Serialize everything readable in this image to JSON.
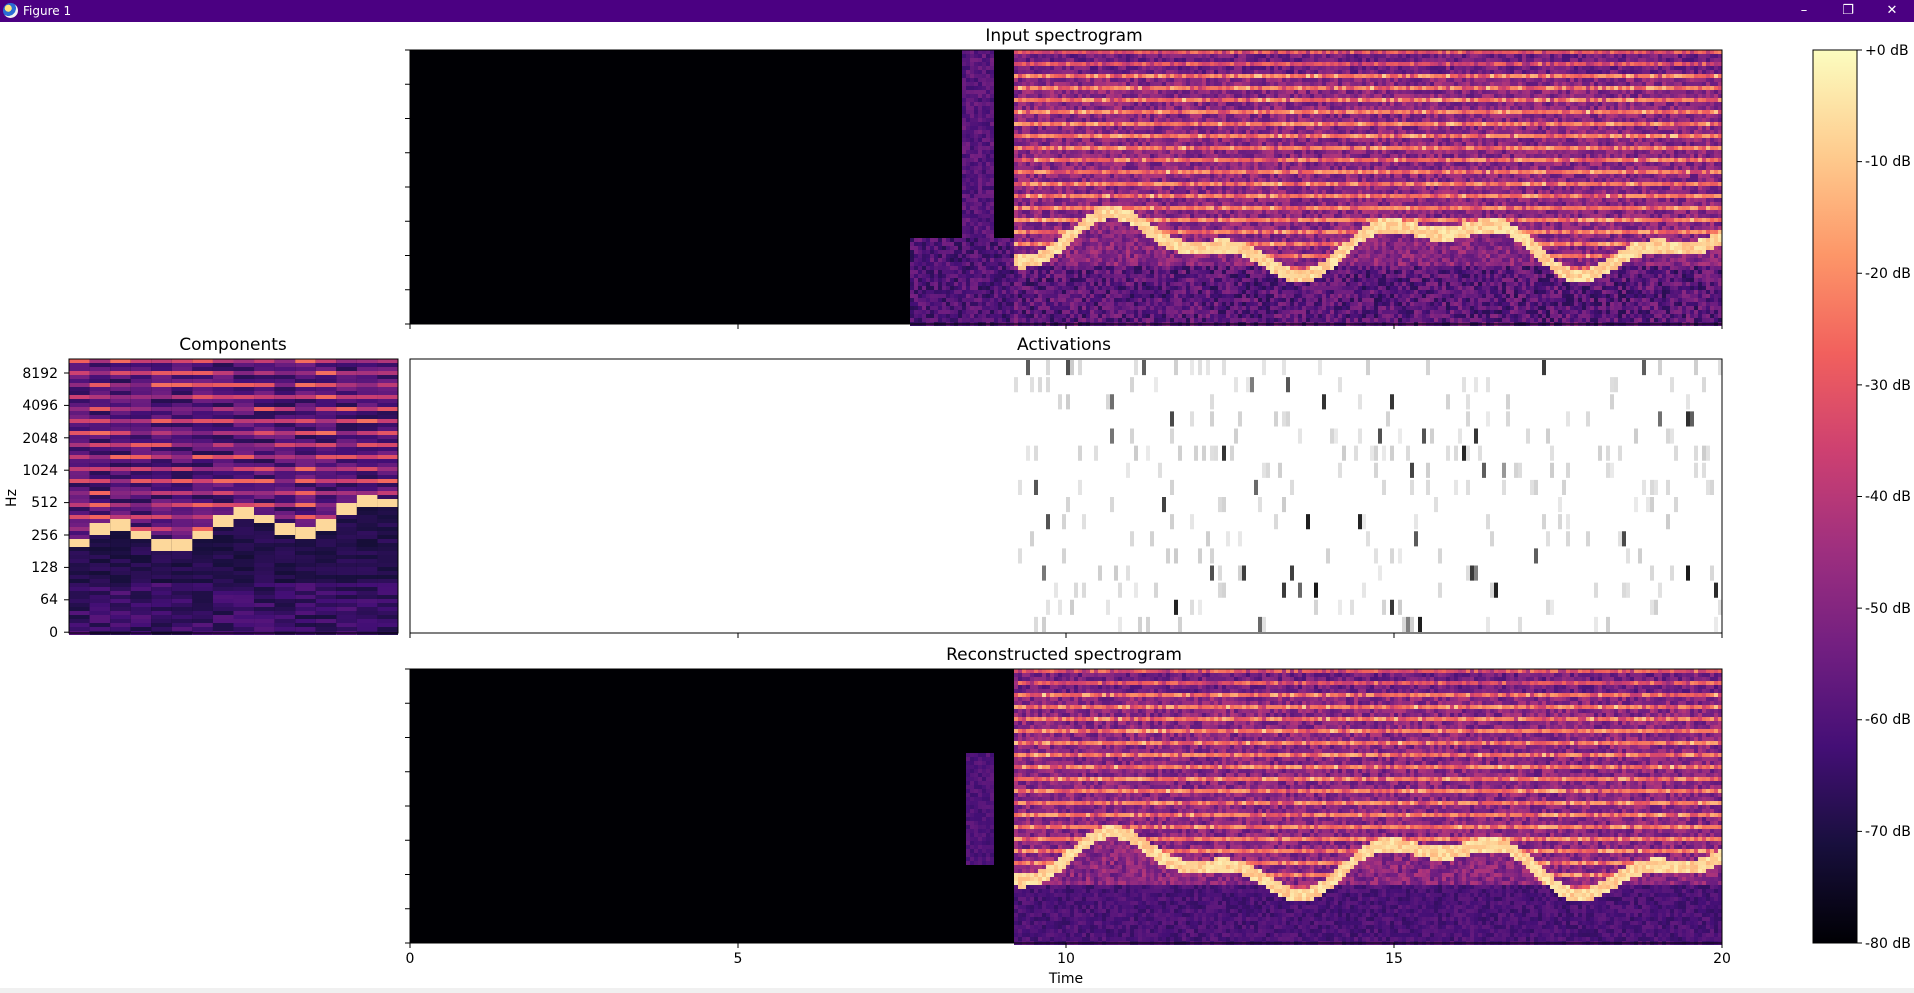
{
  "window": {
    "title": "Figure 1",
    "titlebar_color": "#4b0082",
    "buttons": {
      "minimize": "–",
      "restore": "❐",
      "close": "✕"
    }
  },
  "axes": {
    "input": {
      "title": "Input spectrogram"
    },
    "components": {
      "title": "Components",
      "ylabel": "Hz",
      "yticks": [
        "8192",
        "4096",
        "2048",
        "1024",
        "512",
        "256",
        "128",
        "64",
        "0"
      ]
    },
    "activations": {
      "title": "Activations"
    },
    "reconstructed": {
      "title": "Reconstructed spectrogram",
      "xlabel": "Time",
      "xticks": [
        "0",
        "5",
        "10",
        "15",
        "20"
      ]
    }
  },
  "colorbar": {
    "labels": [
      "+0 dB",
      "-10 dB",
      "-20 dB",
      "-30 dB",
      "-40 dB",
      "-50 dB",
      "-60 dB",
      "-70 dB",
      "-80 dB"
    ],
    "range_db": [
      -80,
      0
    ]
  },
  "colors": {
    "magma_stops": [
      "#000004",
      "#180f3d",
      "#440f76",
      "#721f81",
      "#9e2f7f",
      "#cd4071",
      "#f1605d",
      "#fd9668",
      "#feca8d",
      "#fcfdbf"
    ]
  },
  "chart_data": [
    {
      "type": "heatmap",
      "title": "Input spectrogram",
      "x_range": [
        0,
        20
      ],
      "y_scale": "log",
      "color_range_db": [
        -80,
        0
      ],
      "signal_onset_time": 9.2
    },
    {
      "type": "heatmap",
      "title": "Components",
      "ylabel": "Hz",
      "y_scale": "log",
      "n_components": 16,
      "yticks": [
        0,
        64,
        128,
        256,
        512,
        1024,
        2048,
        4096,
        8192
      ]
    },
    {
      "type": "heatmap",
      "title": "Activations",
      "x_range": [
        0,
        20
      ],
      "n_rows": 16,
      "colormap": "gray_r"
    },
    {
      "type": "heatmap",
      "title": "Reconstructed spectrogram",
      "xlabel": "Time",
      "x_range": [
        0,
        20
      ],
      "xticks": [
        0,
        5,
        10,
        15,
        20
      ],
      "y_scale": "log",
      "color_range_db": [
        -80,
        0
      ]
    }
  ]
}
